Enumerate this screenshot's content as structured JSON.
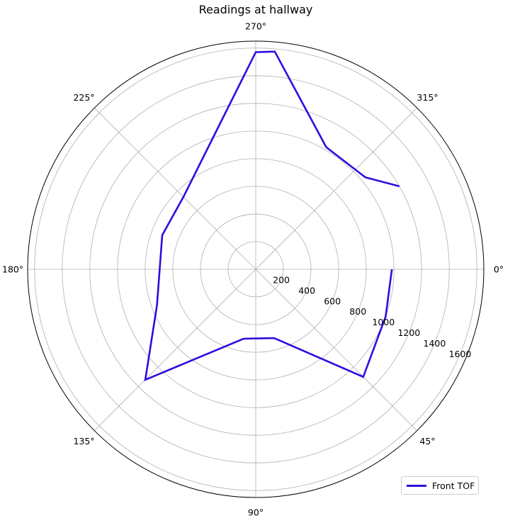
{
  "chart_data": {
    "type": "line",
    "subtype": "polar",
    "title": "Readings at hallway",
    "theta_unit": "degrees",
    "theta_direction": "clockwise",
    "theta_zero_location": "right",
    "angular_ticks": [
      0,
      45,
      90,
      135,
      180,
      225,
      270,
      315
    ],
    "angular_tick_labels": [
      "0°",
      "45°",
      "90°",
      "135°",
      "180°",
      "225°",
      "270°",
      "315°"
    ],
    "radial_ticks": [
      200,
      400,
      600,
      800,
      1000,
      1200,
      1400,
      1600
    ],
    "radial_tick_labels": [
      "200",
      "400",
      "600",
      "800",
      "1000",
      "1200",
      "1400",
      "1600"
    ],
    "rlim": [
      0,
      1650
    ],
    "grid": true,
    "legend_location": "lower right",
    "series": [
      {
        "name": "Front TOF",
        "color": "#2a0fe0",
        "theta": [
          0,
          20,
          45,
          75,
          90,
          100,
          135,
          160,
          200,
          225,
          270,
          275,
          300,
          320,
          330
        ],
        "r": [
          985,
          1000,
          1100,
          515,
          500,
          510,
          1130,
          760,
          720,
          740,
          1570,
          1580,
          1020,
          1035,
          1200
        ]
      }
    ]
  }
}
